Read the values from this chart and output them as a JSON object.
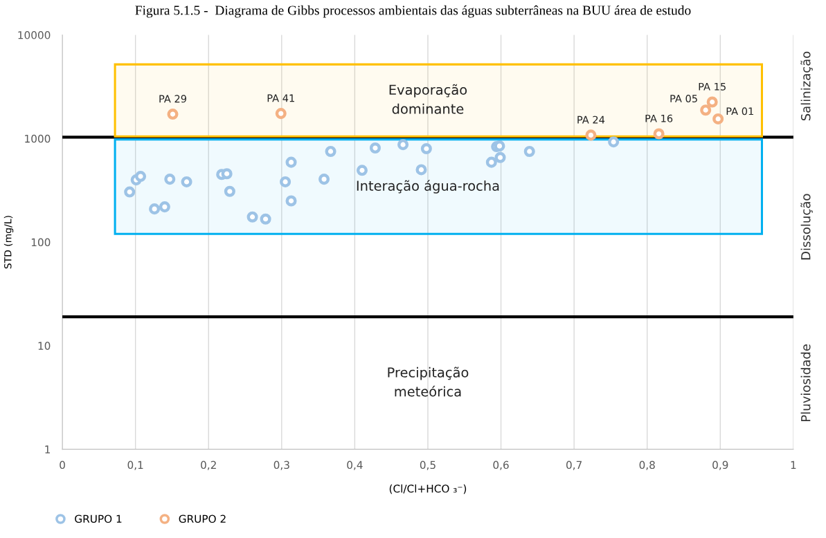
{
  "chart_data": {
    "type": "scatter",
    "title": "Figura 5.1.5 -  Diagrama de Gibbs processos ambientais das águas subterrâneas na BUU área de estudo",
    "xlabel": "(Cl/Cl+HCO ₃⁻)",
    "ylabel": "STD (mg/L)",
    "series": [
      {
        "name": "GRUPO 1",
        "color": "#9dc3e6",
        "x": [
          0.092,
          0.101,
          0.107,
          0.147,
          0.17,
          0.126,
          0.14,
          0.218,
          0.225,
          0.229,
          0.26,
          0.278,
          0.305,
          0.313,
          0.313,
          0.358,
          0.367,
          0.41,
          0.428,
          0.466,
          0.491,
          0.498,
          0.587,
          0.594,
          0.598,
          0.599,
          0.639,
          0.754
        ],
        "values": [
          305,
          399,
          431,
          405,
          382,
          209,
          219,
          450,
          457,
          309,
          175,
          167,
          382,
          590,
          250,
          405,
          751,
          493,
          810,
          873,
          500,
          798,
          590,
          835,
          847,
          656,
          751,
          928
        ]
      },
      {
        "name": "GRUPO 2",
        "color": "#f4b183",
        "x": [
          0.151,
          0.299,
          0.723,
          0.816,
          0.88,
          0.889,
          0.897
        ],
        "values": [
          1720,
          1745,
          1079,
          1111,
          1882,
          2254,
          1548
        ]
      }
    ],
    "annotations": [
      {
        "text": "PA 29",
        "x": 0.151,
        "y": 1720
      },
      {
        "text": "PA 41",
        "x": 0.299,
        "y": 1745
      },
      {
        "text": "PA 24",
        "x": 0.723,
        "y": 1079
      },
      {
        "text": "PA 16",
        "x": 0.816,
        "y": 1111
      },
      {
        "text": "PA 05",
        "x": 0.88,
        "y": 1882
      },
      {
        "text": "PA 15",
        "x": 0.889,
        "y": 2254
      },
      {
        "text": "PA 01",
        "x": 0.897,
        "y": 1548
      },
      "Precipitação\nmeteórica",
      "Salinização",
      "Dissolução",
      "Pluviosidade"
    ],
    "ref_lines": [
      {
        "axis": "y",
        "value": 1030,
        "color": "#000000"
      },
      {
        "axis": "y",
        "value": 19,
        "color": "#000000"
      }
    ],
    "bands": [
      {
        "axis": "y",
        "from": 1050,
        "to": 5200,
        "color": "#ffc000",
        "label": "Evaporação\ndominante"
      },
      {
        "axis": "y",
        "from": 120,
        "to": 980,
        "color": "#00b0f0",
        "label": "Interação água-rocha"
      }
    ],
    "log": "y",
    "xlim": [
      0,
      1
    ],
    "ylim": [
      1,
      10000
    ],
    "xticks": [
      0,
      {
        "value": 0.1,
        "label": "0,1"
      },
      {
        "value": 0.2,
        "label": "0,2"
      },
      {
        "value": 0.3,
        "label": "0,3"
      },
      {
        "value": 0.4,
        "label": "0,4"
      },
      {
        "value": 0.5,
        "label": "0,5"
      },
      {
        "value": 0.6,
        "label": "0,6"
      },
      {
        "value": 0.7,
        "label": "0,7"
      },
      {
        "value": 0.8,
        "label": "0,8"
      },
      {
        "value": 0.9,
        "label": "0,9"
      },
      1
    ],
    "yticks": [
      1,
      10,
      100,
      1000,
      10000
    ],
    "grid": "x",
    "legend": "bottom left",
    "marker": "circle"
  }
}
